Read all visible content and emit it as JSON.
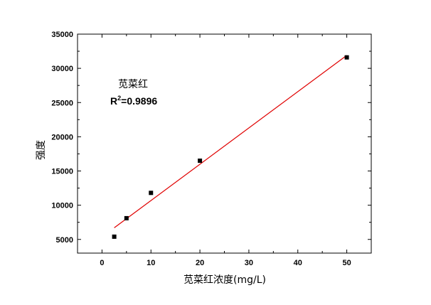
{
  "chart_data": {
    "type": "scatter",
    "title": "",
    "xlabel": "苋菜红浓度(mg/L)",
    "ylabel": "强度",
    "xlim": [
      -5,
      55
    ],
    "ylim": [
      3000,
      35000
    ],
    "x_ticks": [
      0,
      10,
      20,
      30,
      40,
      50
    ],
    "y_ticks": [
      5000,
      10000,
      15000,
      20000,
      25000,
      30000,
      35000
    ],
    "x_tick_labels": [
      "0",
      "10",
      "20",
      "30",
      "40",
      "50"
    ],
    "y_tick_labels": [
      "5000",
      "10000",
      "15000",
      "20000",
      "25000",
      "30000",
      "35000"
    ],
    "grid": false,
    "series": [
      {
        "type": "scatter",
        "marker": "square",
        "color": "#000000",
        "points": [
          {
            "x": 2.5,
            "y": 5400
          },
          {
            "x": 5,
            "y": 8100
          },
          {
            "x": 10,
            "y": 11800
          },
          {
            "x": 20,
            "y": 16500
          },
          {
            "x": 50,
            "y": 31600
          }
        ]
      },
      {
        "type": "line",
        "color": "#e00000",
        "points": [
          {
            "x": 2.5,
            "y": 6700
          },
          {
            "x": 50,
            "y": 31900
          }
        ]
      }
    ],
    "annotations": {
      "name": "苋菜红",
      "r2_prefix": "R",
      "r2_sup": "2",
      "r2_value": "=0.9896"
    }
  }
}
